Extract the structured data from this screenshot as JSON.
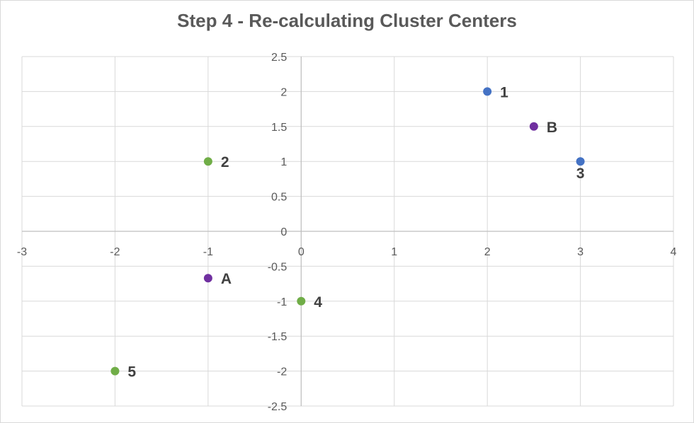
{
  "chart_data": {
    "type": "scatter",
    "title": "Step 4 - Re-calculating Cluster Centers",
    "xlabel": "",
    "ylabel": "",
    "xlim": [
      -3,
      4
    ],
    "ylim": [
      -2.5,
      2.5
    ],
    "x_ticks": [
      -3,
      -2,
      -1,
      0,
      1,
      2,
      3,
      4
    ],
    "y_ticks": [
      -2.5,
      -2,
      -1.5,
      -1,
      -0.5,
      0,
      0.5,
      1,
      1.5,
      2,
      2.5
    ],
    "grid": true,
    "legend": "none",
    "series": [
      {
        "color": "#4472c4",
        "points": [
          {
            "label": "1",
            "x": 2,
            "y": 2
          },
          {
            "label": "3",
            "x": 3,
            "y": 1
          }
        ]
      },
      {
        "color": "#70ad47",
        "points": [
          {
            "label": "2",
            "x": -1,
            "y": 1
          },
          {
            "label": "4",
            "x": 0,
            "y": -1
          },
          {
            "label": "5",
            "x": -2,
            "y": -2
          }
        ]
      },
      {
        "color": "#7030a0",
        "points": [
          {
            "label": "A",
            "x": -1,
            "y": -0.67
          },
          {
            "label": "B",
            "x": 2.5,
            "y": 1.5
          }
        ]
      }
    ]
  }
}
